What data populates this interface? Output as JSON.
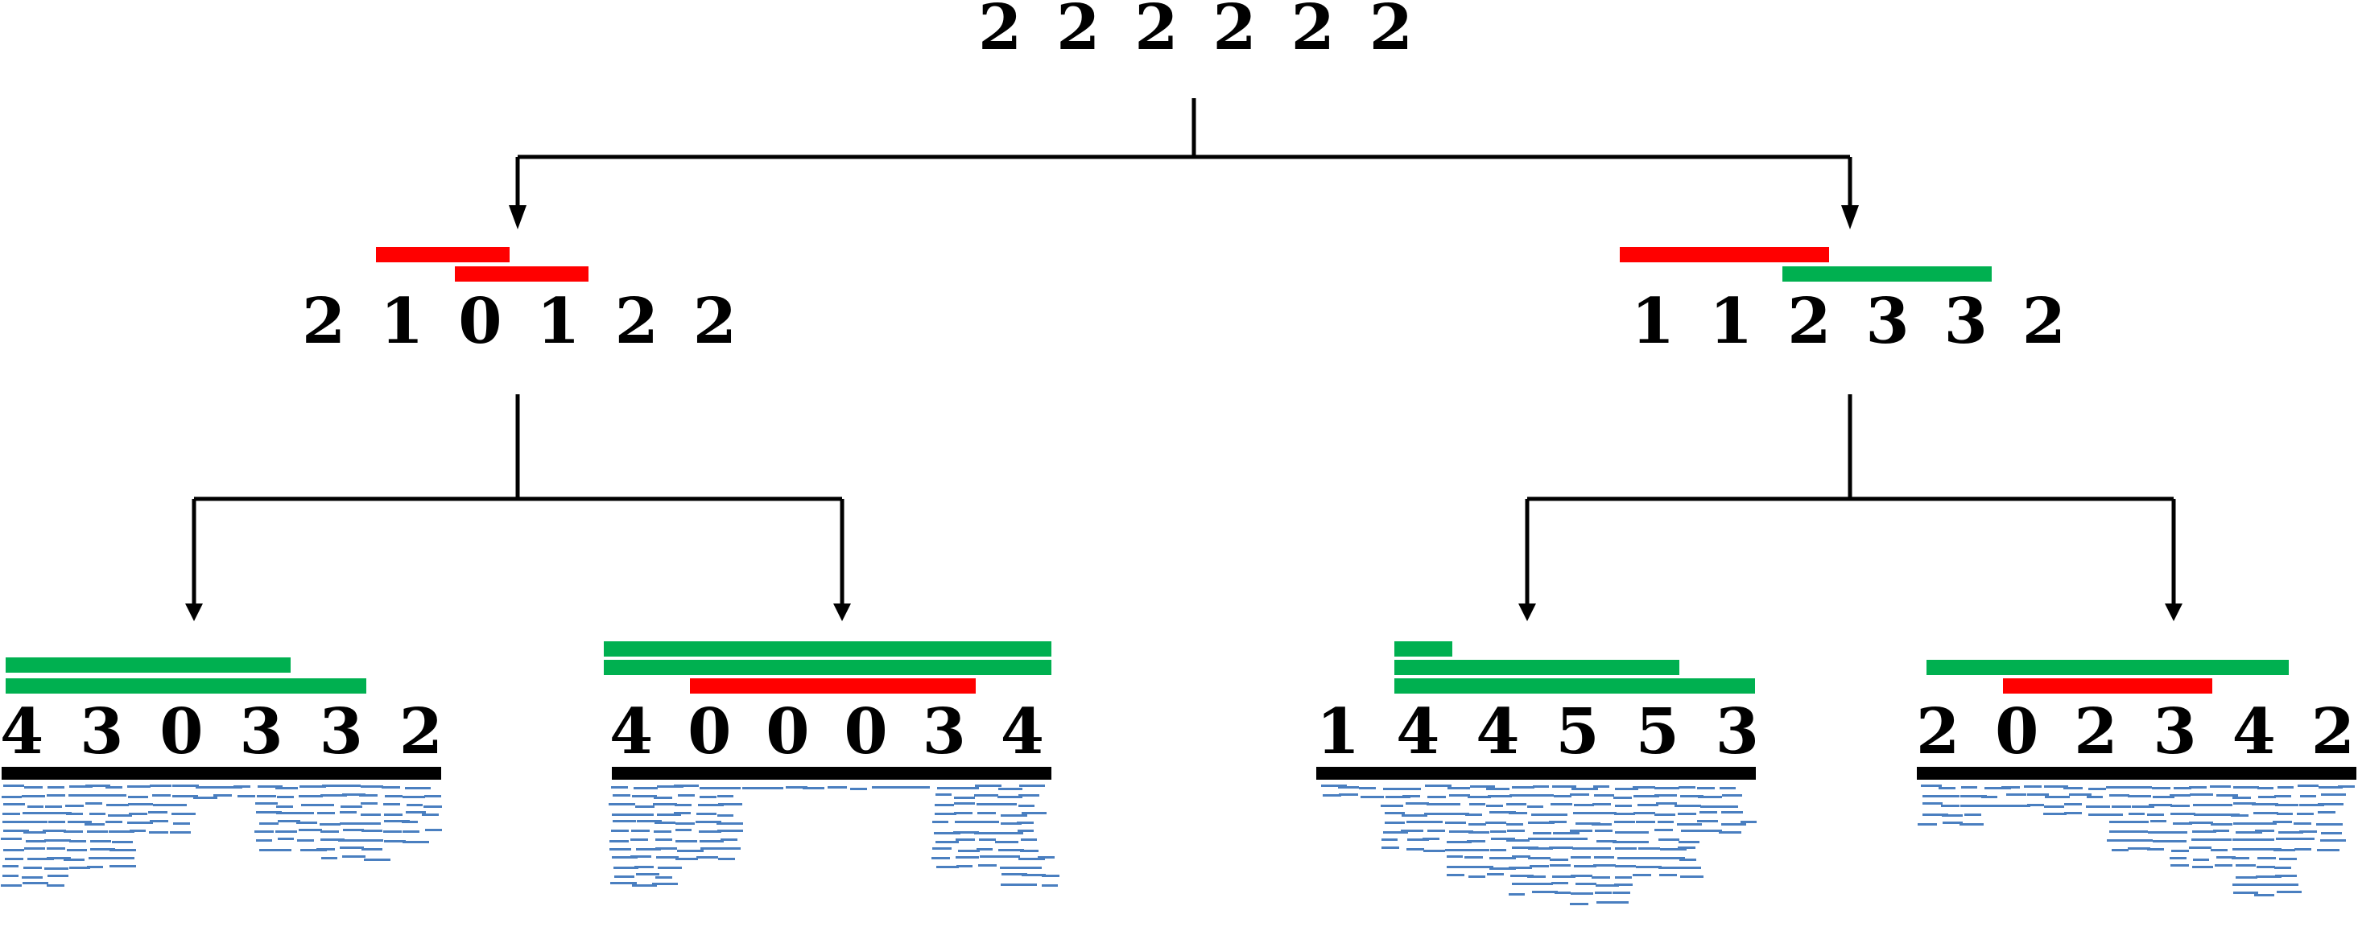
{
  "colors": {
    "green": "#00b050",
    "red": "#ff0000",
    "reads": "#4a7fc0",
    "line": "#000000"
  },
  "nodes": {
    "root": {
      "digits": [
        "2",
        "2",
        "2",
        "2",
        "2",
        "2"
      ],
      "bars": []
    },
    "left": {
      "digits": [
        "2",
        "1",
        "0",
        "1",
        "2",
        "2"
      ],
      "bars": [
        "red",
        "red"
      ]
    },
    "right": {
      "digits": [
        "1",
        "1",
        "2",
        "3",
        "3",
        "2"
      ],
      "bars": [
        "red",
        "green"
      ]
    },
    "leaf_ll": {
      "digits": [
        "4",
        "3",
        "0",
        "3",
        "3",
        "2"
      ],
      "bars": [
        "green",
        "green"
      ]
    },
    "leaf_lr": {
      "digits": [
        "4",
        "0",
        "0",
        "0",
        "3",
        "4"
      ],
      "bars": [
        "green",
        "green",
        "red"
      ]
    },
    "leaf_rl": {
      "digits": [
        "1",
        "4",
        "4",
        "5",
        "5",
        "3"
      ],
      "bars": [
        "green",
        "green",
        "green"
      ]
    },
    "leaf_rr": {
      "digits": [
        "2",
        "0",
        "2",
        "3",
        "4",
        "2"
      ],
      "bars": [
        "green",
        "red"
      ]
    }
  }
}
